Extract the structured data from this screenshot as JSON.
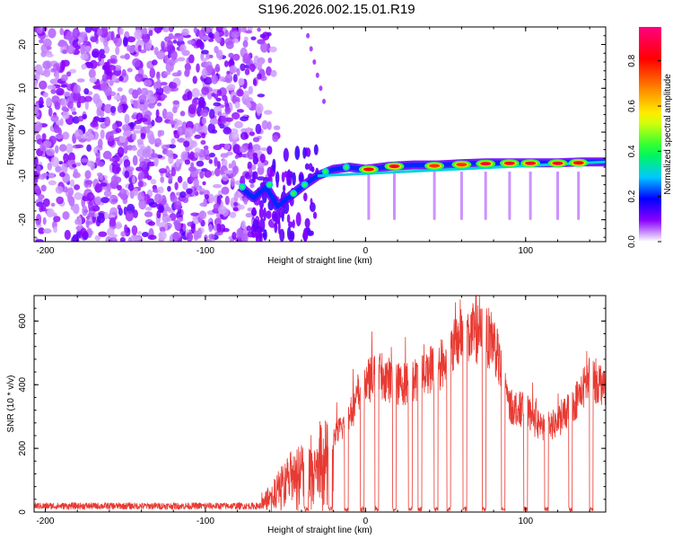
{
  "title": "S196.2026.002.15.01.R19",
  "chart_data": [
    {
      "type": "heatmap",
      "title": "S196.2026.002.15.01.R19",
      "xlabel": "Height of straight line (km)",
      "ylabel": "Frequency (Hz)",
      "xlim": [
        -207,
        150
      ],
      "ylim": [
        -25,
        24
      ],
      "xticks": [
        -200,
        -100,
        0,
        100
      ],
      "xtick_labels": [
        "-200",
        "-100",
        "0",
        "100"
      ],
      "yticks": [
        20,
        10,
        0,
        -10,
        -20
      ],
      "ytick_labels": [
        "20",
        "10",
        "0",
        "-10",
        "-20"
      ],
      "colorbar": {
        "label": "Normalized spectral amplitude",
        "range": [
          0.0,
          0.95
        ],
        "ticks": [
          0.0,
          0.2,
          0.4,
          0.6,
          0.8
        ],
        "tick_labels": [
          "0.0",
          "0.2",
          "0.4",
          "0.6",
          "0.8"
        ],
        "colors": [
          "#ffffff",
          "#8a00ff",
          "#0000ff",
          "#00c8ff",
          "#00ff40",
          "#ffff00",
          "#ff8000",
          "#ff0000",
          "#ff0080"
        ]
      },
      "noise_region": {
        "x_start": -207,
        "x_end": -65,
        "freq_min": -25,
        "freq_max": 24
      },
      "signal_track": [
        {
          "x": -78,
          "freq": -12.5
        },
        {
          "x": -70,
          "freq": -15
        },
        {
          "x": -62,
          "freq": -12.5
        },
        {
          "x": -55,
          "freq": -17
        },
        {
          "x": -45,
          "freq": -14
        },
        {
          "x": -38,
          "freq": -12
        },
        {
          "x": -30,
          "freq": -10
        },
        {
          "x": -20,
          "freq": -8.5
        },
        {
          "x": -10,
          "freq": -8
        },
        {
          "x": 0,
          "freq": -8.5
        },
        {
          "x": 15,
          "freq": -7.8
        },
        {
          "x": 30,
          "freq": -7.5
        },
        {
          "x": 45,
          "freq": -7.5
        },
        {
          "x": 60,
          "freq": -7.2
        },
        {
          "x": 75,
          "freq": -7
        },
        {
          "x": 90,
          "freq": -7
        },
        {
          "x": 105,
          "freq": -7
        },
        {
          "x": 120,
          "freq": -7
        },
        {
          "x": 135,
          "freq": -6.8
        },
        {
          "x": 150,
          "freq": -6.8
        }
      ],
      "signal_peaks": [
        {
          "x": 2,
          "freq": -8.5,
          "amp": 0.85
        },
        {
          "x": 18,
          "freq": -7.8,
          "amp": 0.9
        },
        {
          "x": 43,
          "freq": -7.7,
          "amp": 0.8
        },
        {
          "x": 60,
          "freq": -7.4,
          "amp": 0.8
        },
        {
          "x": 75,
          "freq": -7.2,
          "amp": 0.9
        },
        {
          "x": 90,
          "freq": -7.1,
          "amp": 0.9
        },
        {
          "x": 103,
          "freq": -7.1,
          "amp": 0.9
        },
        {
          "x": 120,
          "freq": -7.1,
          "amp": 0.9
        },
        {
          "x": 133,
          "freq": -7.0,
          "amp": 0.85
        }
      ]
    },
    {
      "type": "line",
      "xlabel": "Height of straight line (km)",
      "ylabel": "SNR (10 * v/v)",
      "xlim": [
        -207,
        150
      ],
      "ylim": [
        0,
        680
      ],
      "xticks": [
        -200,
        -100,
        0,
        100
      ],
      "xtick_labels": [
        "-200",
        "-100",
        "0",
        "100"
      ],
      "yticks": [
        0,
        200,
        400,
        600
      ],
      "ytick_labels": [
        "0",
        "200",
        "400",
        "600"
      ],
      "color": "#e83a32",
      "series": [
        {
          "name": "SNR",
          "envelope": [
            {
              "x": -207,
              "y": 20
            },
            {
              "x": -150,
              "y": 22
            },
            {
              "x": -100,
              "y": 20
            },
            {
              "x": -70,
              "y": 25
            },
            {
              "x": -60,
              "y": 60
            },
            {
              "x": -45,
              "y": 150
            },
            {
              "x": -30,
              "y": 190
            },
            {
              "x": -20,
              "y": 230
            },
            {
              "x": -10,
              "y": 300
            },
            {
              "x": 0,
              "y": 410
            },
            {
              "x": 10,
              "y": 430
            },
            {
              "x": 20,
              "y": 400
            },
            {
              "x": 30,
              "y": 410
            },
            {
              "x": 40,
              "y": 450
            },
            {
              "x": 50,
              "y": 470
            },
            {
              "x": 60,
              "y": 560
            },
            {
              "x": 70,
              "y": 560
            },
            {
              "x": 80,
              "y": 540
            },
            {
              "x": 90,
              "y": 330
            },
            {
              "x": 100,
              "y": 320
            },
            {
              "x": 110,
              "y": 260
            },
            {
              "x": 120,
              "y": 280
            },
            {
              "x": 130,
              "y": 340
            },
            {
              "x": 140,
              "y": 420
            },
            {
              "x": 150,
              "y": 400
            }
          ],
          "dropouts": [
            -37,
            -22,
            -12,
            -2,
            7,
            18,
            28,
            34,
            44,
            52,
            62,
            74,
            86,
            100,
            113,
            128,
            141
          ]
        }
      ]
    }
  ]
}
